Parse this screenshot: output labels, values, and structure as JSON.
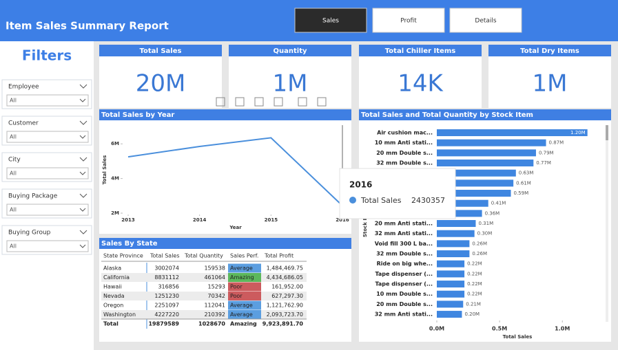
{
  "header": {
    "title": "Item Sales Summary Report"
  },
  "tabs": [
    "Sales",
    "Profit",
    "Details"
  ],
  "filters": {
    "title": "Filters",
    "items": [
      {
        "label": "Employee",
        "value": "All"
      },
      {
        "label": "Customer",
        "value": "All"
      },
      {
        "label": "City",
        "value": "All"
      },
      {
        "label": "Buying Package",
        "value": "All"
      },
      {
        "label": "Buying Group",
        "value": "All"
      }
    ]
  },
  "cards": [
    {
      "label": "Total Sales",
      "value": "20M"
    },
    {
      "label": "Quantity",
      "value": "1M"
    },
    {
      "label": "Total Chiller Items",
      "value": "14K"
    },
    {
      "label": "Total Dry Items",
      "value": "1M"
    }
  ],
  "chart_data": [
    {
      "type": "line",
      "title": "Total Sales by Year",
      "x_label": "Year",
      "y_label": "Total Sales",
      "x": [
        2013,
        2014,
        2015,
        2016
      ],
      "series": [
        {
          "name": "Total Sales",
          "color": "#4a8fdc",
          "values": [
            5250000,
            5850000,
            6350000,
            2430357
          ]
        }
      ],
      "xlim": [
        2013,
        2016
      ],
      "xticks": [
        2013,
        2014,
        2015,
        2016
      ],
      "ylim": [
        2000000,
        7000000
      ],
      "yticks": [
        {
          "value": 2000000,
          "label": "2M"
        },
        {
          "value": 4000000,
          "label": "4M"
        },
        {
          "value": 6000000,
          "label": "6M"
        }
      ],
      "tooltip": {
        "title": "2016",
        "label": "Total Sales",
        "value": 2430357
      }
    },
    {
      "type": "hbar",
      "title": "Total Sales and Total Quantity by Stock Item",
      "x_label": "Total Sales",
      "y_label": "Stock Item",
      "color": "#3f86e0",
      "categories": [
        "Air cushion mac...",
        "10 mm Anti stati...",
        "20 mm Double s...",
        "32 mm Double s...",
        null,
        null,
        null,
        null,
        null,
        "20 mm Anti stati...",
        "32 mm Anti stati...",
        "Void fill 300 L ba...",
        "32 mm Double s...",
        "Ride on big whe...",
        "Tape dispenser (...",
        "Tape dispenser (...",
        "10 mm Double s...",
        "20 mm Double s...",
        "32 mm Anti stati..."
      ],
      "values": [
        1200000,
        870000,
        790000,
        770000,
        630000,
        610000,
        590000,
        410000,
        360000,
        310000,
        300000,
        260000,
        260000,
        220000,
        220000,
        220000,
        220000,
        210000,
        200000
      ],
      "value_labels": [
        "1.20M",
        "0.87M",
        "0.79M",
        "0.77M",
        "0.63M",
        "0.61M",
        "0.59M",
        "0.41M",
        "0.36M",
        "0.31M",
        "0.30M",
        "0.26M",
        "0.26M",
        "0.22M",
        "0.22M",
        "0.22M",
        "0.22M",
        "0.21M",
        "0.20M"
      ],
      "xlim": [
        0,
        1350000
      ],
      "xticks": [
        {
          "value": 0,
          "label": "0.0M"
        },
        {
          "value": 500000,
          "label": "0.5M"
        },
        {
          "value": 1000000,
          "label": "1.0M"
        }
      ]
    }
  ],
  "table": {
    "title": "Sales By State",
    "columns": [
      "State Province",
      "Total Sales",
      "Total Quantity",
      "Sales Perf.",
      "Total Profit"
    ],
    "rows": [
      [
        "Alaska",
        "3002074",
        "159538",
        "Average",
        "1,484,469.75"
      ],
      [
        "California",
        "8831112",
        "461064",
        "Amazing",
        "4,434,686.05"
      ],
      [
        "Hawaii",
        "316856",
        "15293",
        "Poor",
        "161,952.00"
      ],
      [
        "Nevada",
        "1251230",
        "70342",
        "Poor",
        "627,297.30"
      ],
      [
        "Oregon",
        "2251097",
        "112041",
        "Average",
        "1,121,762.90"
      ],
      [
        "Washington",
        "4227220",
        "210392",
        "Average",
        "2,093,723.70"
      ],
      [
        "Total",
        "19879589",
        "1028670",
        "Amazing",
        "9,923,891.70"
      ]
    ],
    "perf_colors": {
      "Average": "#5b9ee0",
      "Amazing": "#5cb85c",
      "Poor": "#cc5b5e"
    }
  }
}
